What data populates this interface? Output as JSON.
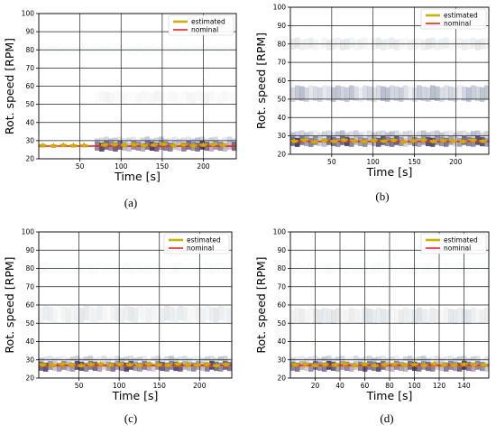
{
  "figure": {
    "captions": [
      "(a)",
      "(b)",
      "(c)",
      "(d)"
    ]
  },
  "chart_data": [
    {
      "type": "heatmap",
      "panel": "(a)",
      "xlabel": "Time [s]",
      "ylabel": "Rot. speed [RPM]",
      "xlim": [
        0,
        240
      ],
      "ylim": [
        20,
        100
      ],
      "xticks": [
        50,
        100,
        150,
        200
      ],
      "yticks": [
        20,
        30,
        40,
        50,
        60,
        70,
        80,
        90,
        100
      ],
      "grid": true,
      "legend": {
        "position": "top-right",
        "entries": [
          {
            "label": "estimated",
            "color": "#c8b400"
          },
          {
            "label": "nominal",
            "color": "#e8231f"
          }
        ]
      },
      "nominal": {
        "x": [
          0,
          240
        ],
        "y": [
          27,
          27
        ]
      },
      "bands": [
        {
          "center": 27,
          "width": 2.5,
          "intensity": 1.0,
          "x_start": 68
        },
        {
          "center": 30.5,
          "width": 1.2,
          "intensity": 0.45,
          "x_start": 68
        },
        {
          "center": 54,
          "width": 3,
          "intensity": 0.15,
          "x_start": 68
        },
        {
          "center": 80,
          "width": 3,
          "intensity": 0.05,
          "x_start": 0
        }
      ],
      "estimated": {
        "x": [
          5,
          18,
          30,
          42,
          55,
          80,
          92,
          104,
          116,
          128,
          140,
          152,
          164,
          176,
          188,
          200,
          212,
          224
        ],
        "y": [
          27.5,
          27.3,
          27.6,
          27.4,
          27.5,
          27.8,
          28.0,
          27.6,
          27.9,
          27.4,
          27.8,
          28.2,
          27.5,
          27.9,
          27.3,
          27.8,
          28.0,
          27.6
        ]
      }
    },
    {
      "type": "heatmap",
      "panel": "(b)",
      "xlabel": "Time [s]",
      "ylabel": "Rot. speed [RPM]",
      "xlim": [
        0,
        240
      ],
      "ylim": [
        20,
        100
      ],
      "xticks": [
        50,
        100,
        150,
        200
      ],
      "yticks": [
        20,
        30,
        40,
        50,
        60,
        70,
        80,
        90,
        100
      ],
      "grid": true,
      "legend": {
        "position": "top-right",
        "entries": [
          {
            "label": "estimated",
            "color": "#c8b400"
          },
          {
            "label": "nominal",
            "color": "#e8231f"
          }
        ]
      },
      "nominal": {
        "x": [
          0,
          240
        ],
        "y": [
          27,
          27
        ]
      },
      "bands": [
        {
          "center": 27,
          "width": 2.5,
          "intensity": 1.0,
          "x_start": 0
        },
        {
          "center": 31,
          "width": 1.5,
          "intensity": 0.5,
          "x_start": 0
        },
        {
          "center": 53,
          "width": 4,
          "intensity": 0.5,
          "x_start": 0
        },
        {
          "center": 80,
          "width": 3,
          "intensity": 0.2,
          "x_start": 0
        }
      ],
      "estimated": {
        "x": [
          5,
          17,
          29,
          41,
          53,
          65,
          77,
          89,
          101,
          113,
          125,
          137,
          149,
          161,
          173,
          185,
          197,
          209,
          221,
          233
        ],
        "y": [
          27.3,
          27.8,
          27.0,
          27.6,
          27.2,
          27.9,
          27.4,
          27.1,
          27.7,
          27.3,
          27.8,
          27.0,
          27.5,
          27.9,
          27.2,
          27.6,
          27.4,
          27.1,
          27.8,
          27.3
        ]
      }
    },
    {
      "type": "heatmap",
      "panel": "(c)",
      "xlabel": "Time [s]",
      "ylabel": "Rot. speed [RPM]",
      "xlim": [
        0,
        240
      ],
      "ylim": [
        20,
        100
      ],
      "xticks": [
        50,
        100,
        150,
        200
      ],
      "yticks": [
        20,
        30,
        40,
        50,
        60,
        70,
        80,
        90,
        100
      ],
      "grid": true,
      "legend": {
        "position": "top-right",
        "entries": [
          {
            "label": "estimated",
            "color": "#c8b400"
          },
          {
            "label": "nominal",
            "color": "#e8231f"
          }
        ]
      },
      "nominal": {
        "x": [
          0,
          240
        ],
        "y": [
          27,
          27
        ]
      },
      "bands": [
        {
          "center": 26.5,
          "width": 2.5,
          "intensity": 1.0,
          "x_start": 0
        },
        {
          "center": 30.5,
          "width": 1.2,
          "intensity": 0.45,
          "x_start": 0
        },
        {
          "center": 55,
          "width": 4,
          "intensity": 0.2,
          "x_start": 0
        },
        {
          "center": 80,
          "width": 3,
          "intensity": 0.08,
          "x_start": 0
        }
      ],
      "estimated": {
        "x": [
          5,
          17,
          29,
          41,
          53,
          65,
          77,
          89,
          101,
          113,
          125,
          137,
          149,
          161,
          173,
          185,
          197,
          209,
          221,
          233
        ],
        "y": [
          27.5,
          27.2,
          27.8,
          27.4,
          27.0,
          27.6,
          27.9,
          27.3,
          27.7,
          27.5,
          27.1,
          27.8,
          27.4,
          27.2,
          27.9,
          27.5,
          27.3,
          27.7,
          27.0,
          27.6
        ]
      }
    },
    {
      "type": "heatmap",
      "panel": "(d)",
      "xlabel": "Time [s]",
      "ylabel": "Rot. speed [RPM]",
      "xlim": [
        0,
        160
      ],
      "ylim": [
        20,
        100
      ],
      "xticks": [
        20,
        40,
        60,
        80,
        100,
        120,
        140
      ],
      "yticks": [
        20,
        30,
        40,
        50,
        60,
        70,
        80,
        90,
        100
      ],
      "grid": true,
      "legend": {
        "position": "top-right",
        "entries": [
          {
            "label": "estimated",
            "color": "#c8b400"
          },
          {
            "label": "nominal",
            "color": "#e8231f"
          }
        ]
      },
      "nominal": {
        "x": [
          0,
          160
        ],
        "y": [
          27,
          27
        ]
      },
      "bands": [
        {
          "center": 26.5,
          "width": 2.5,
          "intensity": 1.0,
          "x_start": 0
        },
        {
          "center": 30.5,
          "width": 1.2,
          "intensity": 0.45,
          "x_start": 0
        },
        {
          "center": 54,
          "width": 4,
          "intensity": 0.25,
          "x_start": 0
        },
        {
          "center": 80,
          "width": 3,
          "intensity": 0.08,
          "x_start": 0
        }
      ],
      "estimated": {
        "x": [
          4,
          12,
          20,
          28,
          36,
          44,
          52,
          60,
          68,
          76,
          84,
          92,
          100,
          108,
          116,
          124,
          132,
          140,
          148,
          156
        ],
        "y": [
          27.4,
          27.8,
          27.1,
          27.6,
          27.3,
          27.9,
          27.2,
          27.7,
          27.0,
          27.5,
          27.8,
          27.3,
          27.6,
          27.1,
          27.9,
          27.4,
          27.2,
          27.7,
          27.5,
          27.3
        ]
      }
    }
  ]
}
